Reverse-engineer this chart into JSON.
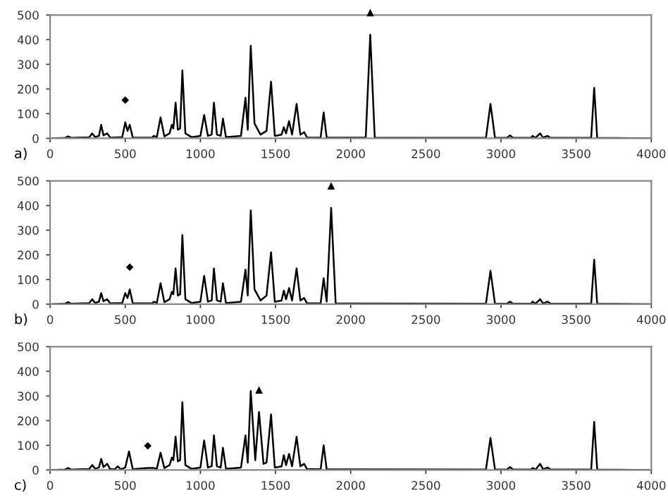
{
  "chart_data": [
    {
      "type": "line",
      "xlim": [
        0,
        4000
      ],
      "ylim": [
        0,
        500
      ],
      "xticks": [
        0,
        500,
        1000,
        1500,
        2000,
        2500,
        3000,
        3500,
        4000
      ],
      "yticks": [
        0,
        100,
        200,
        300,
        400,
        500
      ],
      "grid": false,
      "legend": false,
      "marker": "none",
      "line_style": "solid",
      "annotations": [
        "a)",
        {
          "text": "◆",
          "x": 500,
          "y": 65
        },
        {
          "text": "▲",
          "x": 2130,
          "y": 420
        }
      ],
      "series": [
        {
          "color": "#000000",
          "x": [
            0,
            100,
            120,
            140,
            260,
            280,
            300,
            325,
            340,
            355,
            380,
            400,
            480,
            500,
            515,
            530,
            550,
            680,
            690,
            710,
            735,
            760,
            795,
            810,
            820,
            835,
            850,
            865,
            880,
            900,
            940,
            1000,
            1025,
            1050,
            1075,
            1090,
            1110,
            1135,
            1150,
            1170,
            1270,
            1300,
            1315,
            1335,
            1360,
            1400,
            1440,
            1470,
            1495,
            1540,
            1555,
            1570,
            1590,
            1610,
            1640,
            1665,
            1690,
            1710,
            1800,
            1820,
            1840,
            2100,
            2130,
            2160,
            2900,
            2930,
            2960,
            3040,
            3060,
            3080,
            3200,
            3210,
            3230,
            3260,
            3280,
            3310,
            3330,
            3600,
            3620,
            3640,
            4000
          ],
          "values": [
            0,
            2,
            8,
            2,
            4,
            20,
            5,
            10,
            55,
            12,
            20,
            3,
            5,
            65,
            30,
            55,
            3,
            3,
            10,
            5,
            85,
            8,
            20,
            55,
            40,
            145,
            35,
            40,
            275,
            20,
            5,
            10,
            95,
            10,
            15,
            145,
            15,
            10,
            80,
            5,
            10,
            165,
            35,
            375,
            60,
            15,
            30,
            230,
            10,
            15,
            45,
            20,
            70,
            15,
            140,
            15,
            25,
            3,
            3,
            105,
            3,
            3,
            420,
            3,
            2,
            140,
            2,
            2,
            12,
            2,
            2,
            10,
            2,
            20,
            3,
            10,
            2,
            2,
            205,
            2,
            0
          ]
        }
      ]
    },
    {
      "type": "line",
      "xlim": [
        0,
        4000
      ],
      "ylim": [
        0,
        500
      ],
      "xticks": [
        0,
        500,
        1000,
        1500,
        2000,
        2500,
        3000,
        3500,
        4000
      ],
      "yticks": [
        0,
        100,
        200,
        300,
        400,
        500
      ],
      "grid": false,
      "legend": false,
      "marker": "none",
      "line_style": "solid",
      "annotations": [
        "b)",
        {
          "text": "◆",
          "x": 530,
          "y": 60
        },
        {
          "text": "▲",
          "x": 1870,
          "y": 390
        }
      ],
      "series": [
        {
          "color": "#000000",
          "x": [
            0,
            100,
            120,
            140,
            260,
            280,
            300,
            325,
            340,
            355,
            380,
            400,
            480,
            500,
            515,
            530,
            550,
            680,
            690,
            710,
            735,
            760,
            795,
            810,
            820,
            835,
            850,
            865,
            880,
            900,
            940,
            1000,
            1025,
            1050,
            1075,
            1090,
            1110,
            1135,
            1150,
            1170,
            1270,
            1300,
            1315,
            1335,
            1360,
            1400,
            1440,
            1470,
            1495,
            1540,
            1555,
            1570,
            1590,
            1610,
            1640,
            1665,
            1690,
            1710,
            1800,
            1820,
            1840,
            1870,
            1900,
            2900,
            2930,
            2960,
            3040,
            3060,
            3080,
            3200,
            3210,
            3230,
            3260,
            3280,
            3310,
            3330,
            3600,
            3620,
            3640,
            4000
          ],
          "values": [
            0,
            2,
            8,
            2,
            4,
            20,
            5,
            10,
            45,
            12,
            20,
            3,
            5,
            45,
            25,
            60,
            3,
            3,
            10,
            5,
            85,
            8,
            20,
            50,
            40,
            145,
            35,
            40,
            280,
            20,
            5,
            10,
            115,
            10,
            15,
            145,
            15,
            10,
            85,
            5,
            10,
            140,
            35,
            380,
            60,
            15,
            35,
            210,
            10,
            15,
            55,
            20,
            65,
            15,
            145,
            15,
            25,
            3,
            3,
            105,
            10,
            390,
            3,
            2,
            135,
            2,
            2,
            10,
            2,
            2,
            10,
            2,
            20,
            3,
            10,
            2,
            2,
            180,
            2,
            0
          ]
        }
      ]
    },
    {
      "type": "line",
      "xlim": [
        0,
        4000
      ],
      "ylim": [
        0,
        500
      ],
      "xticks": [
        0,
        500,
        1000,
        1500,
        2000,
        2500,
        3000,
        3500,
        4000
      ],
      "yticks": [
        0,
        100,
        200,
        300,
        400,
        500
      ],
      "grid": false,
      "legend": false,
      "marker": "none",
      "line_style": "solid",
      "annotations": [
        "c)",
        {
          "text": "◆",
          "x": 650,
          "y": 8
        },
        {
          "text": "▲",
          "x": 1390,
          "y": 235
        }
      ],
      "series": [
        {
          "color": "#000000",
          "x": [
            0,
            100,
            120,
            140,
            260,
            280,
            300,
            325,
            340,
            355,
            380,
            400,
            430,
            450,
            470,
            500,
            525,
            550,
            650,
            690,
            710,
            735,
            760,
            795,
            810,
            820,
            835,
            850,
            865,
            880,
            900,
            940,
            1000,
            1025,
            1050,
            1075,
            1090,
            1110,
            1135,
            1150,
            1170,
            1270,
            1300,
            1315,
            1335,
            1365,
            1390,
            1420,
            1440,
            1470,
            1495,
            1540,
            1555,
            1570,
            1590,
            1610,
            1640,
            1665,
            1690,
            1710,
            1800,
            1820,
            1840,
            2900,
            2930,
            2960,
            3040,
            3060,
            3080,
            3200,
            3210,
            3230,
            3260,
            3280,
            3310,
            3330,
            3600,
            3620,
            3640,
            4000
          ],
          "values": [
            0,
            2,
            8,
            2,
            4,
            20,
            5,
            10,
            45,
            12,
            25,
            3,
            3,
            15,
            3,
            10,
            75,
            3,
            8,
            8,
            5,
            70,
            8,
            20,
            50,
            40,
            135,
            35,
            40,
            275,
            20,
            5,
            10,
            120,
            10,
            15,
            140,
            15,
            10,
            90,
            5,
            10,
            140,
            30,
            320,
            40,
            235,
            25,
            30,
            225,
            10,
            15,
            60,
            20,
            65,
            15,
            135,
            15,
            25,
            3,
            3,
            100,
            3,
            2,
            130,
            2,
            2,
            12,
            2,
            2,
            8,
            2,
            25,
            3,
            10,
            2,
            2,
            195,
            2,
            0
          ]
        }
      ]
    }
  ]
}
